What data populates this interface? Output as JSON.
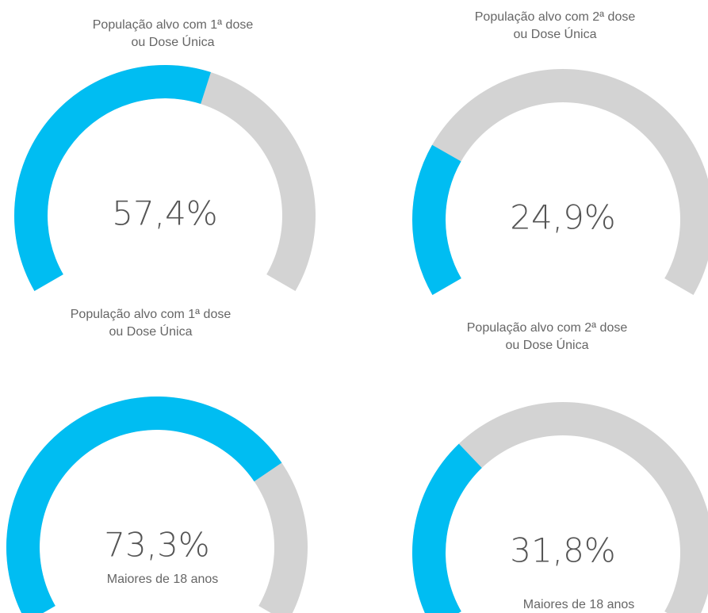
{
  "chart_data": [
    {
      "type": "gauge",
      "title": [
        "População alvo com 1ª dose",
        "ou Dose Única"
      ],
      "value": 57.4,
      "value_label": "57,4%",
      "ylim": [
        0,
        100
      ],
      "color": "#00bdf2",
      "track_color": "#d3d3d3"
    },
    {
      "type": "gauge",
      "title": [
        "População alvo com 2ª dose",
        "ou Dose Única"
      ],
      "value": 24.9,
      "value_label": "24,9%",
      "ylim": [
        0,
        100
      ],
      "color": "#00bdf2",
      "track_color": "#d3d3d3"
    },
    {
      "type": "gauge",
      "title": [
        "População alvo com 1ª dose",
        "ou Dose Única"
      ],
      "subtitle": "Maiores de 18 anos",
      "value": 73.3,
      "value_label": "73,3%",
      "ylim": [
        0,
        100
      ],
      "color": "#00bdf2",
      "track_color": "#d3d3d3"
    },
    {
      "type": "gauge",
      "title": [
        "População alvo com 2ª dose",
        "ou Dose Única"
      ],
      "subtitle": "Maiores de 18 anos",
      "value": 31.8,
      "value_label": "31,8%",
      "ylim": [
        0,
        100
      ],
      "color": "#00bdf2",
      "track_color": "#d3d3d3"
    }
  ]
}
